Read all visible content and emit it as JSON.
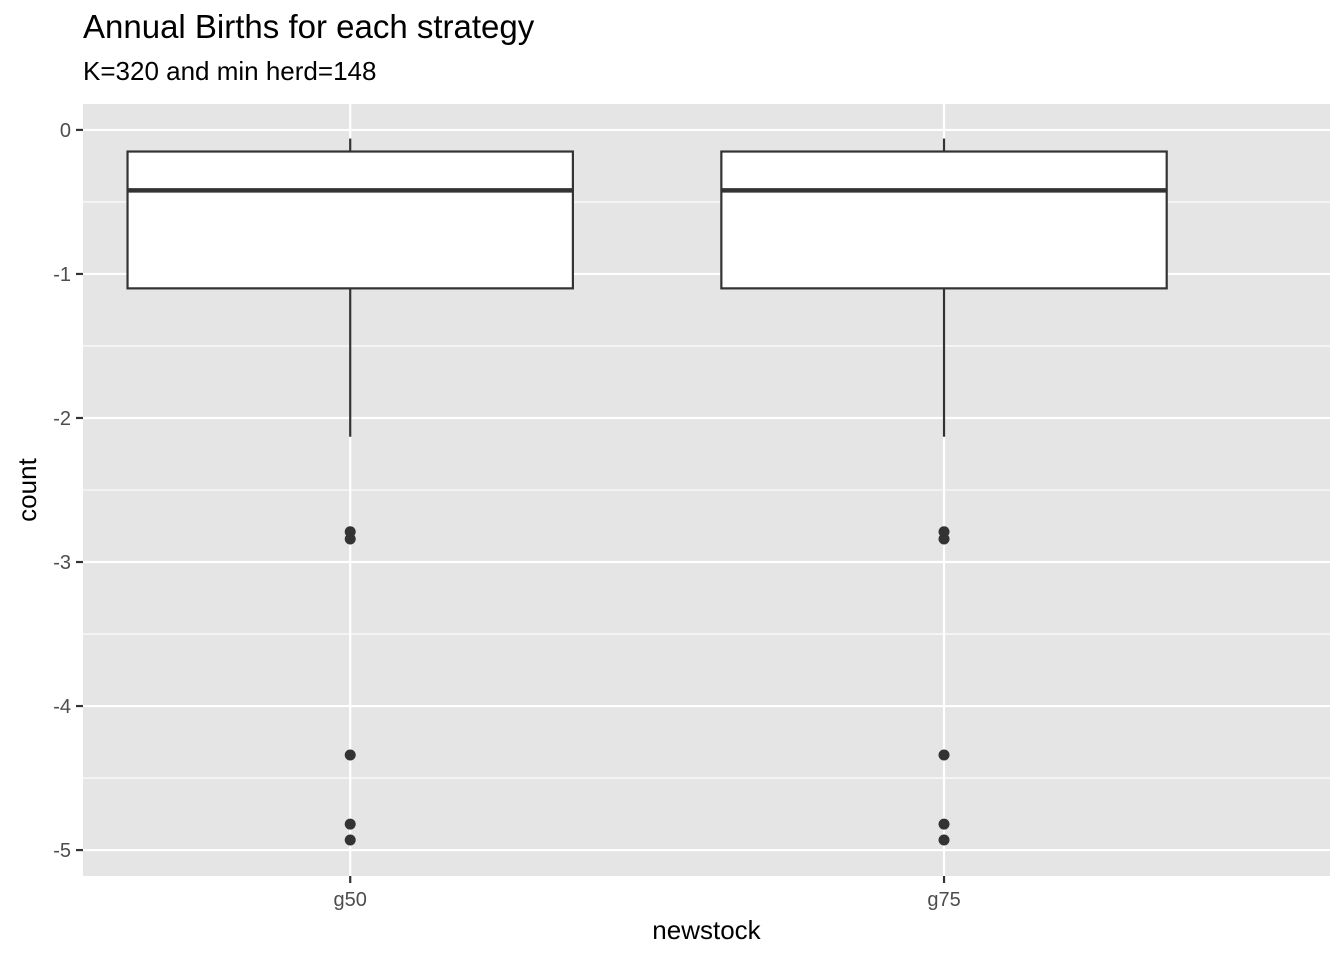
{
  "chart_data": {
    "type": "boxplot",
    "title": "Annual Births for each strategy",
    "subtitle": "K=320 and min herd=148",
    "xlabel": "newstock",
    "ylabel": "count",
    "categories": [
      "g50",
      "g75"
    ],
    "ylim": [
      -5.18,
      0.18
    ],
    "yticks": [
      0,
      -1,
      -2,
      -3,
      -4,
      -5
    ],
    "ytick_labels": [
      "0",
      "-1",
      "-2",
      "-3",
      "-4",
      "-5"
    ],
    "grid": true,
    "boxes": [
      {
        "category": "g50",
        "whisker_high": -0.06,
        "q3": -0.15,
        "median": -0.42,
        "q1": -1.1,
        "whisker_low": -2.13,
        "outliers": [
          -2.79,
          -2.84,
          -4.34,
          -4.82,
          -4.93
        ]
      },
      {
        "category": "g75",
        "whisker_high": -0.06,
        "q3": -0.15,
        "median": -0.42,
        "q1": -1.1,
        "whisker_low": -2.13,
        "outliers": [
          -2.79,
          -2.84,
          -4.34,
          -4.82,
          -4.93
        ]
      }
    ],
    "colors": {
      "panel_background": "#e5e5e5",
      "grid": "#ffffff",
      "box_fill": "#ffffff",
      "box_line": "#333333",
      "outlier": "#333333"
    }
  }
}
